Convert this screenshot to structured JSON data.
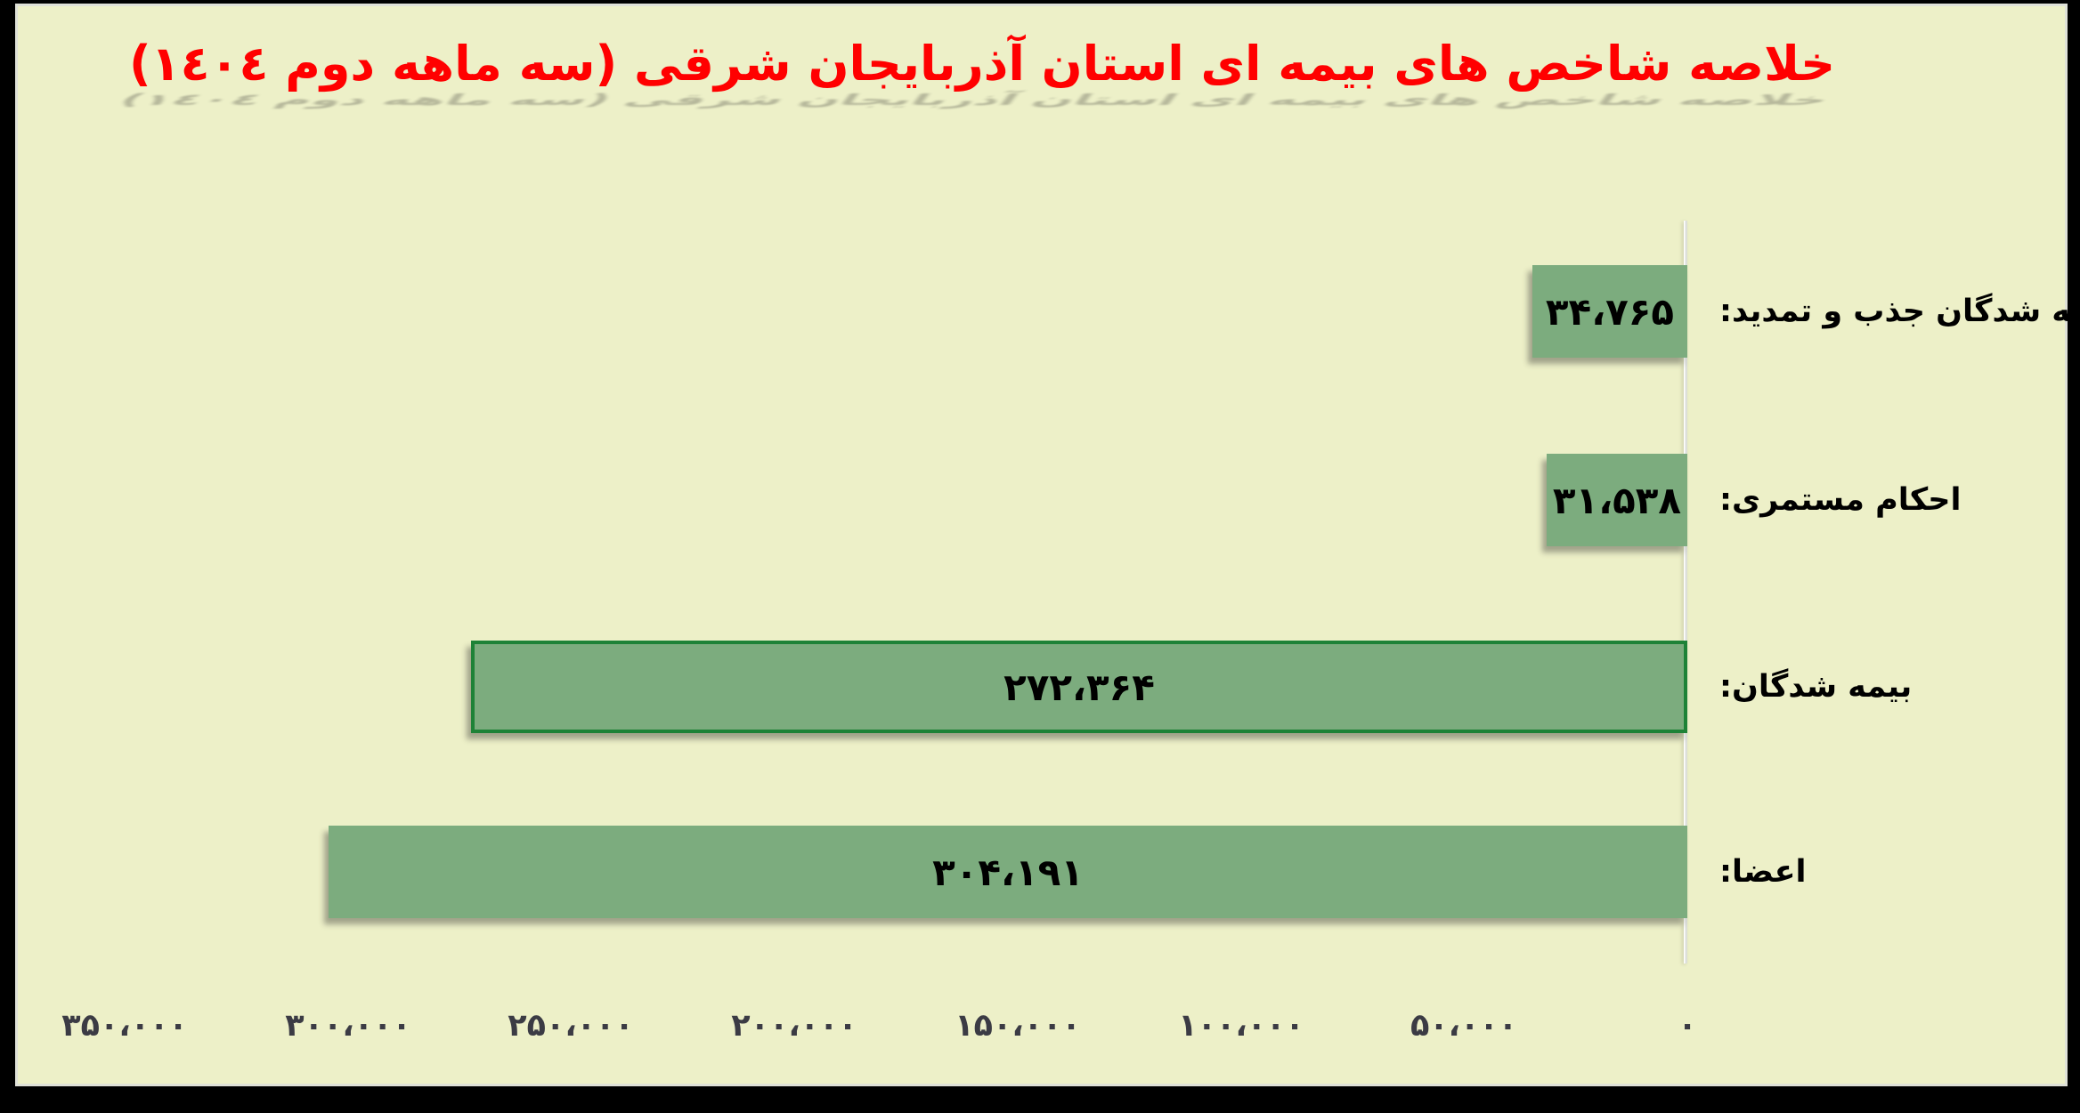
{
  "title": {
    "text": "خلاصه شاخص های بیمه ای استان آذربایجان شرقی (سه ماهه دوم ١٤٠٤)",
    "color": "#ff0000"
  },
  "chart_data": {
    "type": "bar",
    "orientation": "horizontal",
    "text_direction": "rtl",
    "title": "خلاصه شاخص های بیمه ای استان آذربایجان شرقی (سه ماهه دوم ١٤٠٤)",
    "categories": [
      "بیمه شدگان جذب و تمدید:",
      "احکام مستمری:",
      "بیمه شدگان:",
      "اعضا:"
    ],
    "values": [
      34765,
      31538,
      272364,
      304191
    ],
    "bars": [
      {
        "category": "بیمه شدگان جذب و تمدید:",
        "value": 34765,
        "value_label": "۳۴،۷۶۵",
        "highlighted": false
      },
      {
        "category": "احکام مستمری:",
        "value": 31538,
        "value_label": "۳۱،۵۳۸",
        "highlighted": false
      },
      {
        "category": "بیمه شدگان:",
        "value": 272364,
        "value_label": "۲۷۲،۳۶۴",
        "highlighted": true
      },
      {
        "category": "اعضا:",
        "value": 304191,
        "value_label": "۳۰۴،۱۹۱",
        "highlighted": false
      }
    ],
    "x_axis": {
      "min": 0,
      "max": 350000,
      "tick_interval": 50000,
      "ticks": [
        {
          "label": "۰",
          "value": 0
        },
        {
          "label": "۵۰،۰۰۰",
          "value": 50000
        },
        {
          "label": "۱۰۰،۰۰۰",
          "value": 100000
        },
        {
          "label": "۱۵۰،۰۰۰",
          "value": 150000
        },
        {
          "label": "۲۰۰،۰۰۰",
          "value": 200000
        },
        {
          "label": "۲۵۰،۰۰۰",
          "value": 250000
        },
        {
          "label": "۳۰۰،۰۰۰",
          "value": 300000
        },
        {
          "label": "۳۵۰،۰۰۰",
          "value": 350000
        }
      ]
    },
    "grid": false,
    "legend": false,
    "colors": {
      "background": "#edf0c8",
      "bar_fill": "#7cac7e",
      "highlight_border": "#1e8237",
      "title_text": "#ff0000",
      "label_text": "#000000",
      "tick_text": "#3b3b44"
    }
  }
}
